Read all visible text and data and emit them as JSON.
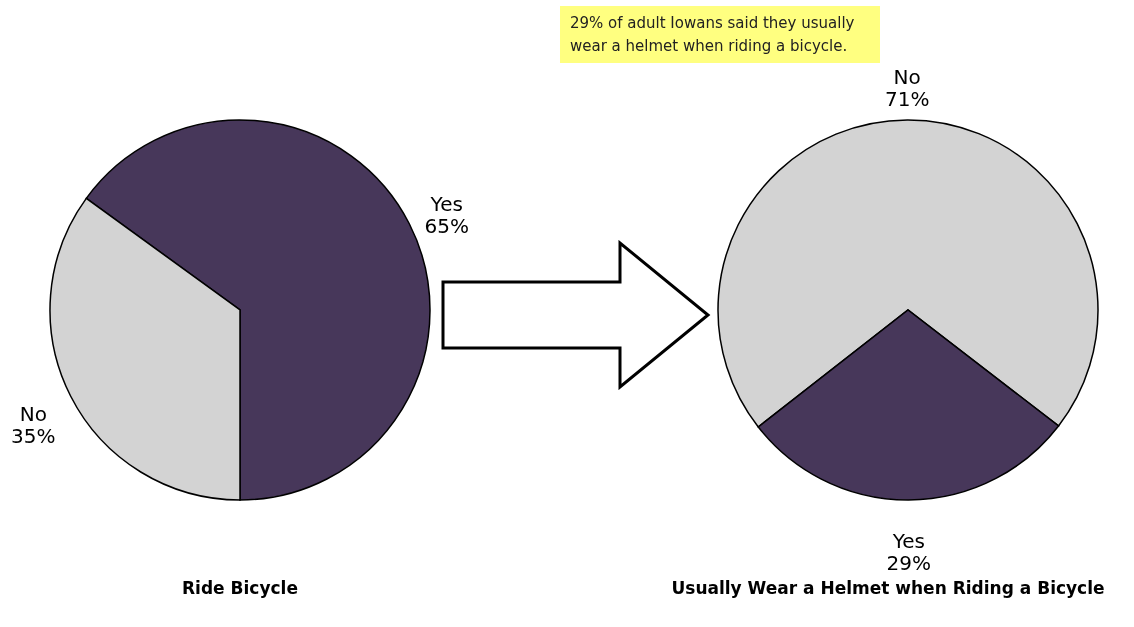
{
  "chart_data": [
    {
      "type": "pie",
      "title": "Ride Bicycle",
      "categories": [
        "Yes",
        "No"
      ],
      "values": [
        65,
        35
      ],
      "colors": [
        "#47375a",
        "#d3d3d3"
      ],
      "value_labels": [
        "65%",
        "35%"
      ]
    },
    {
      "type": "pie",
      "title": "Usually Wear a Helmet when Riding a Bicycle",
      "categories": [
        "No",
        "Yes"
      ],
      "values": [
        71,
        29
      ],
      "colors": [
        "#d3d3d3",
        "#47375a"
      ],
      "value_labels": [
        "71%",
        "29%"
      ],
      "annotations": [
        "29% of adult Iowans said they usually wear a helmet when riding a bicycle."
      ]
    }
  ]
}
